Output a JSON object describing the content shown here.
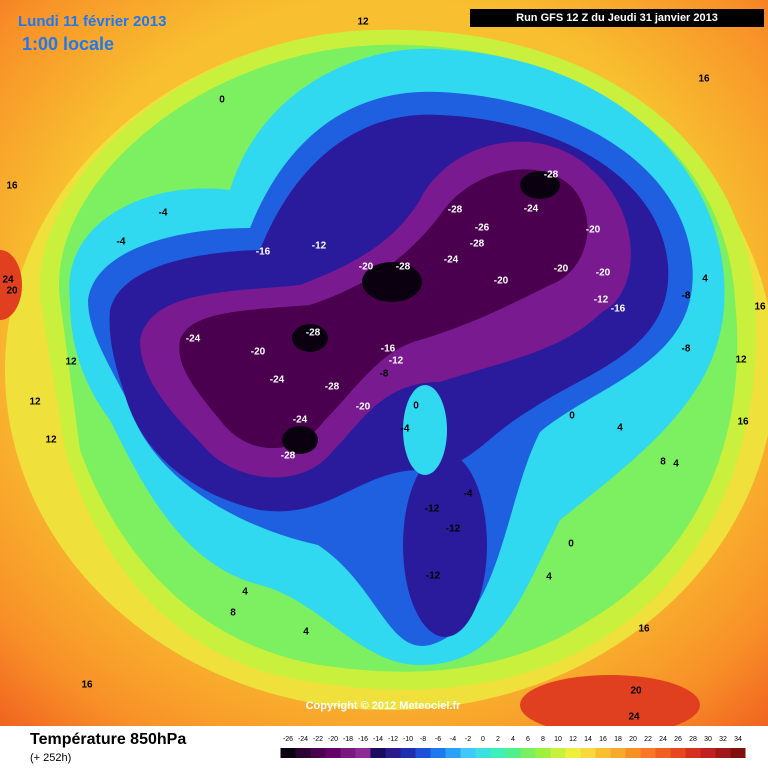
{
  "header": {
    "date": "Lundi 11 février 2013",
    "time": "1:00 locale",
    "run": "Run GFS 12 Z du Jeudi 31 janvier 2013"
  },
  "map": {
    "contour_labels": [
      -28,
      -24,
      -28,
      -26,
      -28,
      -20,
      -24,
      -20,
      -20,
      -20,
      -28,
      -20,
      -12,
      -16,
      -24,
      -20,
      -28,
      -16,
      -12,
      -24,
      -28,
      -8,
      -20,
      -24,
      -28,
      0,
      -4,
      -12,
      -16,
      -8,
      -8,
      -4,
      -12,
      -12,
      -12,
      0,
      4,
      4,
      8,
      4,
      4,
      12,
      16,
      16,
      16,
      12,
      16,
      24,
      20,
      12,
      12,
      12,
      0,
      -4,
      -4,
      4,
      8,
      4,
      16,
      16,
      20,
      24,
      0
    ],
    "copyright": "Copyright © 2012 Meteociel.fr"
  },
  "footer": {
    "title": "Température 850hPa",
    "subtitle": "(+ 252h)"
  },
  "scale": {
    "labels": [
      -26,
      -24,
      -22,
      -20,
      -18,
      -16,
      -14,
      -12,
      -10,
      -8,
      -6,
      -4,
      -2,
      0,
      2,
      4,
      6,
      8,
      10,
      12,
      14,
      16,
      18,
      20,
      22,
      24,
      26,
      28,
      30,
      32,
      34
    ],
    "colors": [
      "#0a0010",
      "#2d0033",
      "#4a004f",
      "#640068",
      "#7a1a80",
      "#8c2c96",
      "#1c0a5e",
      "#2a1a8c",
      "#1e2eb0",
      "#1e50d8",
      "#1e78f0",
      "#2aa0f8",
      "#40c8f8",
      "#3ce0e0",
      "#3cf0b8",
      "#50f08c",
      "#78f060",
      "#a0f040",
      "#c8f03c",
      "#f0f03c",
      "#f8d83c",
      "#f8c030",
      "#f8a82c",
      "#f89028",
      "#f87828",
      "#f06020",
      "#e84820",
      "#d83020",
      "#c02020",
      "#a01818",
      "#801010"
    ]
  }
}
